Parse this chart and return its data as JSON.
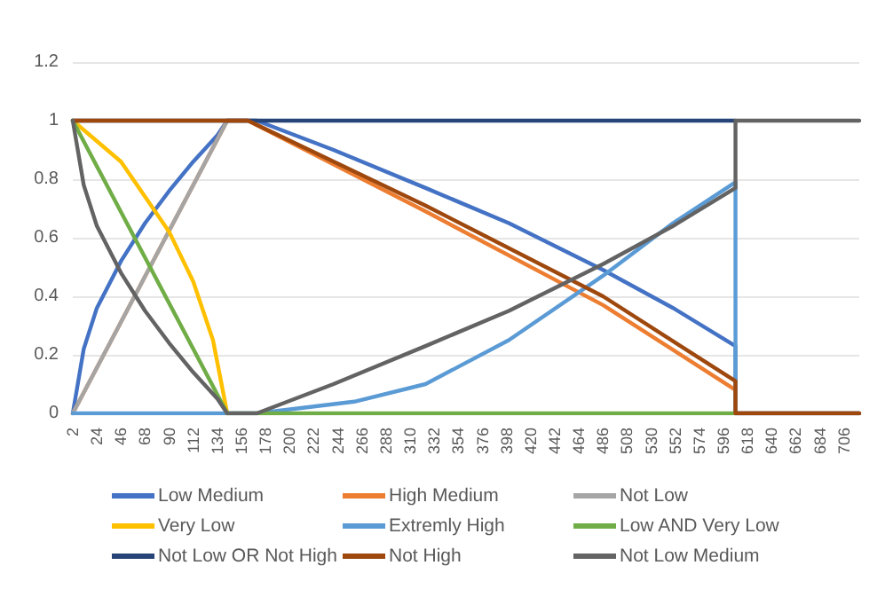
{
  "chart_data": {
    "type": "line",
    "marker": "none",
    "line_style": "solid",
    "grid": "y",
    "legend": "bottom",
    "xlim": [
      2,
      720
    ],
    "xticks": [
      2,
      24,
      46,
      68,
      90,
      112,
      134,
      156,
      178,
      200,
      222,
      244,
      266,
      288,
      310,
      332,
      354,
      376,
      398,
      420,
      442,
      464,
      486,
      508,
      530,
      552,
      574,
      596,
      618,
      640,
      662,
      684,
      706
    ],
    "ylim": [
      0,
      1.2
    ],
    "yticks": [
      0,
      0.2,
      0.4,
      0.6,
      0.8,
      1,
      1.2
    ],
    "series": [
      {
        "name": "Low Medium",
        "color": "#4472c4",
        "x": [
          2,
          12,
          24,
          46,
          68,
          90,
          112,
          134,
          143,
          170,
          240,
          324,
          400,
          486,
          550,
          607,
          607,
          720
        ],
        "values": [
          0,
          0.22,
          0.36,
          0.52,
          0.65,
          0.76,
          0.86,
          0.95,
          1,
          1,
          0.9,
          0.77,
          0.65,
          0.49,
          0.36,
          0.23,
          0,
          0
        ]
      },
      {
        "name": "High Medium",
        "color": "#ed7d31",
        "x": [
          2,
          143,
          162,
          324,
          486,
          607,
          607,
          720
        ],
        "values": [
          0,
          1,
          1,
          0.69,
          0.37,
          0.08,
          0,
          0
        ]
      },
      {
        "name": "Not Low",
        "color": "#a5a5a5",
        "x": [
          2,
          143
        ],
        "values": [
          0,
          1
        ]
      },
      {
        "name": "Very Low",
        "color": "#ffc000",
        "x": [
          2,
          46,
          90,
          112,
          130,
          143
        ],
        "values": [
          1,
          0.86,
          0.62,
          0.45,
          0.25,
          0
        ]
      },
      {
        "name": "Extremly High",
        "color": "#5b9bd5",
        "x": [
          2,
          170,
          259,
          324,
          400,
          486,
          550,
          607,
          607,
          720
        ],
        "values": [
          0,
          0,
          0.04,
          0.1,
          0.25,
          0.47,
          0.65,
          0.79,
          0,
          0
        ]
      },
      {
        "name": "Low AND Very Low",
        "color": "#70ad47",
        "x": [
          2,
          143,
          607
        ],
        "values": [
          1,
          0,
          0
        ]
      },
      {
        "name": "Not Low OR Not High",
        "color": "#264478",
        "x": [
          2,
          607
        ],
        "values": [
          1,
          1
        ]
      },
      {
        "name": "Not High",
        "color": "#9e480e",
        "x": [
          2,
          162,
          324,
          486,
          607,
          607,
          720
        ],
        "values": [
          1,
          1,
          0.71,
          0.4,
          0.11,
          0,
          0
        ]
      },
      {
        "name": "Not Low Medium",
        "color": "#636363",
        "x": [
          2,
          12,
          24,
          46,
          68,
          90,
          112,
          134,
          143,
          170,
          240,
          324,
          400,
          486,
          550,
          607,
          607,
          720
        ],
        "values": [
          1,
          0.78,
          0.64,
          0.48,
          0.35,
          0.24,
          0.14,
          0.05,
          0,
          0,
          0.1,
          0.23,
          0.35,
          0.51,
          0.64,
          0.77,
          1,
          1
        ]
      }
    ]
  }
}
